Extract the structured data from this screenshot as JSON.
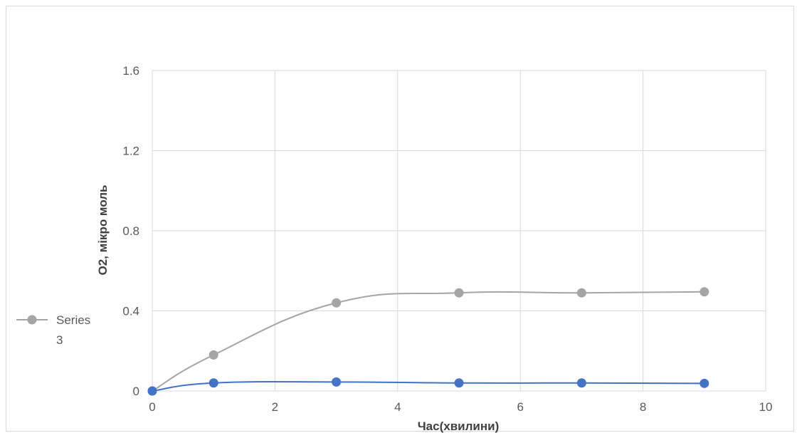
{
  "chart_data": {
    "type": "scatter",
    "title": "",
    "xlabel": "Час(хвилини)",
    "ylabel": "О2, мікро моль",
    "xlim": [
      0,
      10
    ],
    "ylim": [
      0,
      1.6
    ],
    "x_ticks": [
      "0",
      "2",
      "4",
      "6",
      "8",
      "10"
    ],
    "y_ticks": [
      "0",
      "0.4",
      "0.8",
      "1.2",
      "1.6"
    ],
    "grid": true,
    "smooth_lines": true,
    "legend": {
      "placement": "left",
      "entries": [
        {
          "label_line1": "Series",
          "label_line2": "3",
          "color": "#a5a5a5"
        }
      ]
    },
    "series": [
      {
        "name": "Series 3",
        "color": "#a5a5a5",
        "x": [
          0,
          1,
          3,
          5,
          7,
          9
        ],
        "y": [
          0,
          0.18,
          0.44,
          0.49,
          0.49,
          0.495
        ]
      },
      {
        "color": "#4472c4",
        "x": [
          0,
          1,
          3,
          5,
          7,
          9
        ],
        "y": [
          0,
          0.04,
          0.045,
          0.04,
          0.04,
          0.038
        ]
      }
    ]
  }
}
